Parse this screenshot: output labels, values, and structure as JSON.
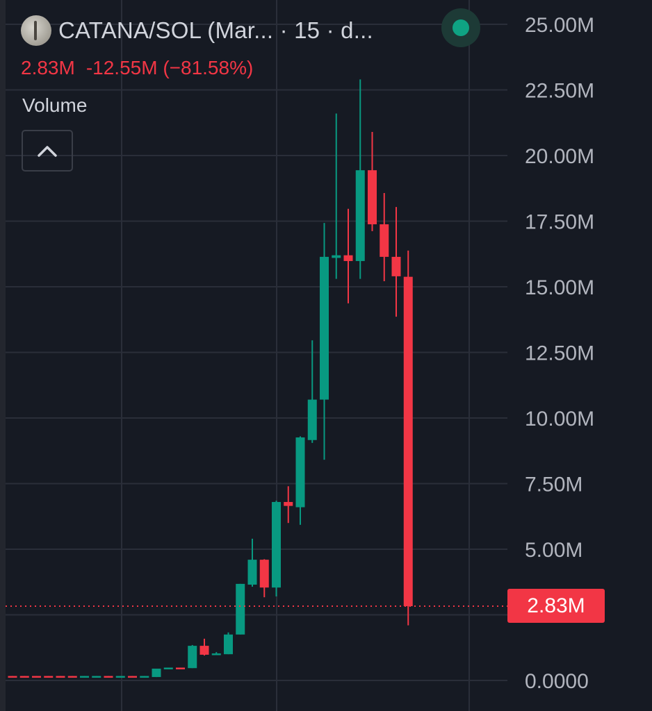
{
  "header": {
    "title": "CATANA/SOL (Mar... · 15 · d...",
    "last_price": "2.83M",
    "change": "-12.55M",
    "change_pct": "(−81.58%)",
    "indicator_label": "Volume",
    "live_status": "live"
  },
  "price_tag": "2.83M",
  "colors": {
    "up": "#089981",
    "down": "#f23645",
    "background": "#161a23",
    "grid": "#2a2e39"
  },
  "chart_data": {
    "type": "candlestick",
    "title": "CATANA/SOL 15",
    "ylim": [
      0,
      25000000
    ],
    "yticks": [
      {
        "value": 25000000,
        "label": "25.00M"
      },
      {
        "value": 22500000,
        "label": "22.50M"
      },
      {
        "value": 20000000,
        "label": "20.00M"
      },
      {
        "value": 17500000,
        "label": "17.50M"
      },
      {
        "value": 15000000,
        "label": "15.00M"
      },
      {
        "value": 12500000,
        "label": "12.50M"
      },
      {
        "value": 10000000,
        "label": "10.00M"
      },
      {
        "value": 7500000,
        "label": "7.50M"
      },
      {
        "value": 5000000,
        "label": "5.00M"
      },
      {
        "value": 2500000,
        "label": ""
      },
      {
        "value": 0,
        "label": "0.0000"
      }
    ],
    "unit": "M",
    "last_value": 2.83,
    "candles": [
      [
        0.17,
        0.17,
        0.15,
        0.15
      ],
      [
        0.17,
        0.17,
        0.15,
        0.15
      ],
      [
        0.17,
        0.17,
        0.15,
        0.15
      ],
      [
        0.17,
        0.17,
        0.15,
        0.15
      ],
      [
        0.17,
        0.17,
        0.15,
        0.15
      ],
      [
        0.17,
        0.17,
        0.15,
        0.15
      ],
      [
        0.15,
        0.17,
        0.15,
        0.17
      ],
      [
        0.15,
        0.17,
        0.15,
        0.17
      ],
      [
        0.17,
        0.17,
        0.15,
        0.15
      ],
      [
        0.15,
        0.17,
        0.15,
        0.17
      ],
      [
        0.17,
        0.17,
        0.15,
        0.15
      ],
      [
        0.15,
        0.17,
        0.15,
        0.17
      ],
      [
        0.13,
        0.45,
        0.13,
        0.45
      ],
      [
        0.47,
        0.49,
        0.47,
        0.49
      ],
      [
        0.49,
        0.49,
        0.47,
        0.47
      ],
      [
        0.47,
        1.35,
        0.47,
        1.32
      ],
      [
        1.32,
        1.59,
        0.95,
        0.98
      ],
      [
        0.98,
        1.08,
        0.98,
        1.03
      ],
      [
        1.0,
        1.83,
        1.0,
        1.75
      ],
      [
        1.75,
        3.68,
        1.75,
        3.68
      ],
      [
        3.65,
        5.4,
        3.57,
        4.6
      ],
      [
        4.6,
        4.62,
        3.17,
        3.54
      ],
      [
        3.54,
        6.85,
        3.2,
        6.8
      ],
      [
        6.8,
        7.4,
        6.0,
        6.65
      ],
      [
        6.6,
        9.3,
        5.93,
        9.26
      ],
      [
        9.16,
        12.96,
        9.05,
        10.7
      ],
      [
        10.7,
        17.43,
        8.41,
        16.14
      ],
      [
        16.1,
        21.6,
        15.3,
        16.2
      ],
      [
        16.2,
        17.97,
        14.37,
        15.98
      ],
      [
        15.98,
        22.9,
        15.3,
        19.44
      ],
      [
        19.44,
        20.9,
        17.12,
        17.38
      ],
      [
        17.38,
        18.57,
        15.21,
        16.14
      ],
      [
        16.14,
        18.04,
        13.86,
        15.4
      ],
      [
        15.38,
        16.38,
        2.1,
        2.83
      ]
    ],
    "candle_format": [
      "open",
      "high",
      "low",
      "close"
    ],
    "grid": true
  }
}
